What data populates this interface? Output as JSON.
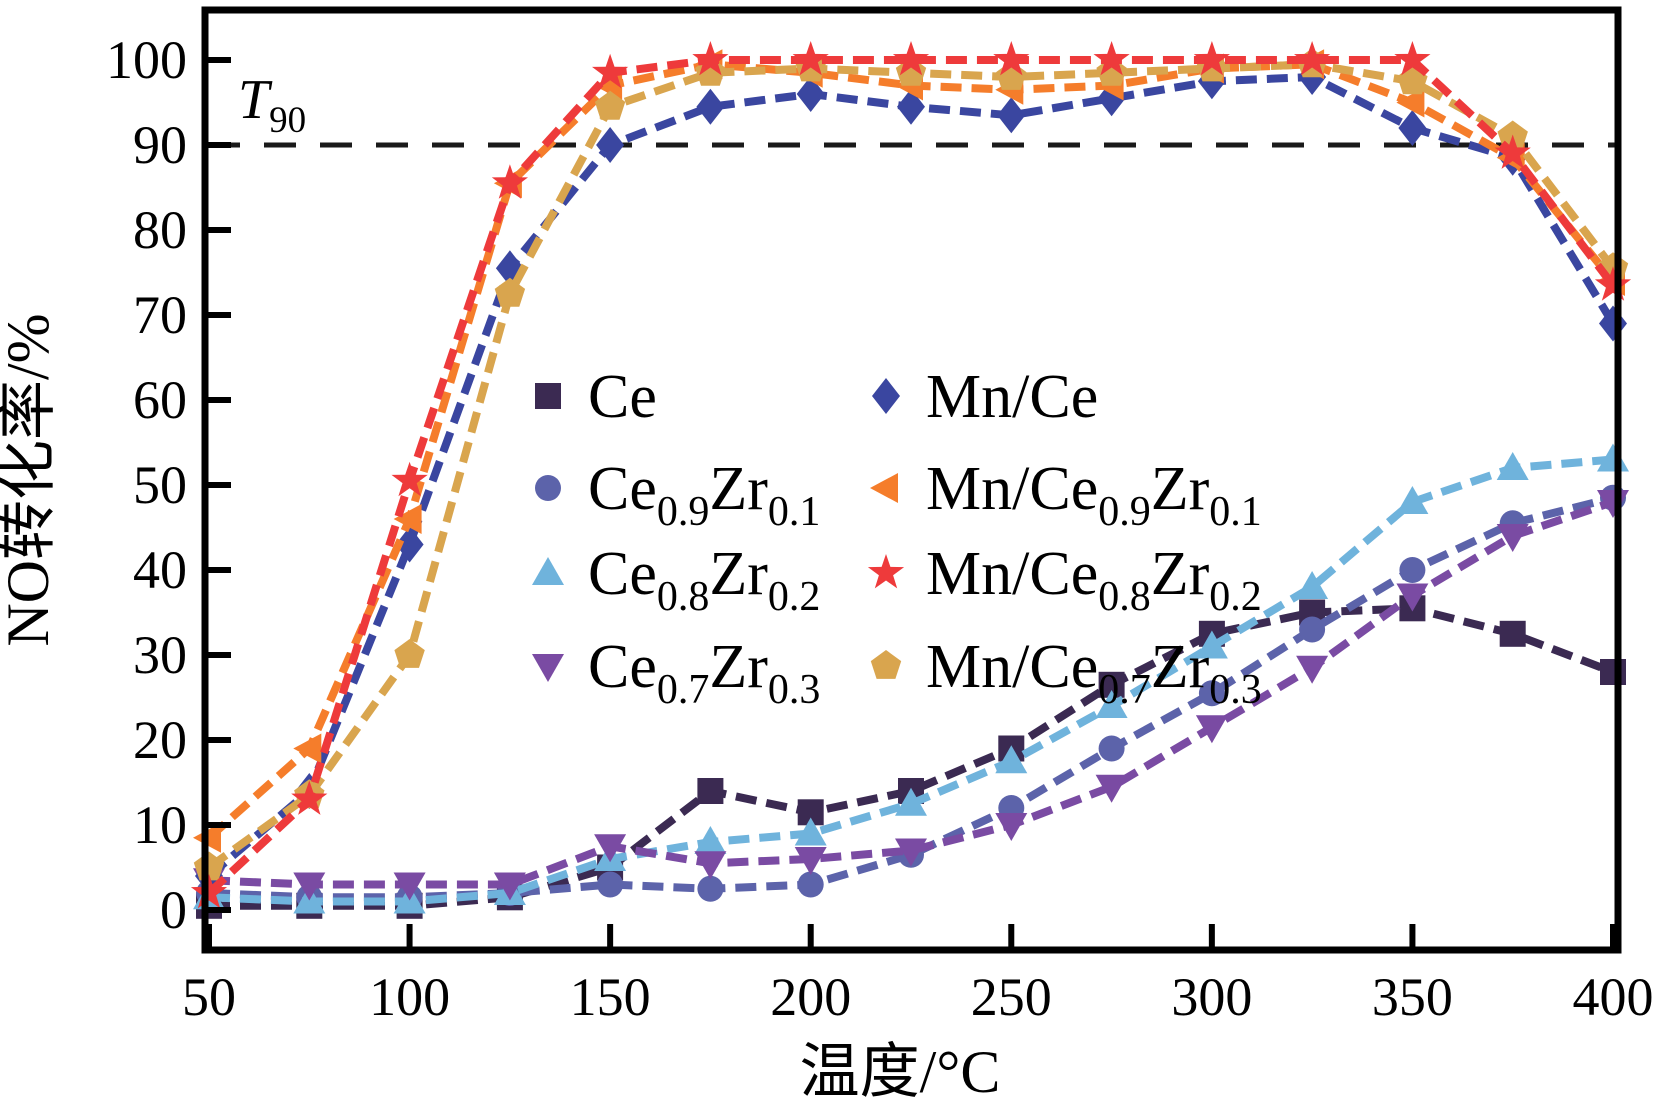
{
  "chart_data": {
    "type": "line",
    "title": "",
    "xlabel": "温度/°C",
    "ylabel": "NO转化率/%",
    "xlim": [
      50,
      400
    ],
    "ylim": [
      -5,
      105
    ],
    "x_ticks": [
      50,
      100,
      150,
      200,
      250,
      300,
      350,
      400
    ],
    "y_ticks": [
      0,
      10,
      20,
      30,
      40,
      50,
      60,
      70,
      80,
      90,
      100
    ],
    "grid": false,
    "legend_position": "center",
    "legend_columns": 2,
    "axis_color": "#000000",
    "background_color": "#ffffff",
    "reference_line": {
      "y": 90,
      "style": "dashed",
      "color": "#1a1a1a",
      "label_main": "T",
      "label_sub": "90"
    },
    "x": [
      50,
      75,
      100,
      125,
      150,
      175,
      200,
      225,
      250,
      275,
      300,
      325,
      350,
      375,
      400
    ],
    "series": [
      {
        "name": "Ce",
        "label_parts": [
          {
            "t": "Ce",
            "sub": false
          }
        ],
        "marker": "square",
        "color": "#3b2a52",
        "values": [
          0.5,
          0.5,
          0.5,
          1.5,
          5,
          14,
          11.5,
          14,
          19,
          26.5,
          32.5,
          35,
          35.5,
          32.5,
          28
        ]
      },
      {
        "name": "Ce0.9Zr0.1",
        "label_parts": [
          {
            "t": "Ce",
            "sub": false
          },
          {
            "t": "0.9",
            "sub": true
          },
          {
            "t": "Zr",
            "sub": false
          },
          {
            "t": "0.1",
            "sub": true
          }
        ],
        "marker": "circle",
        "color": "#5c63aa",
        "values": [
          2,
          1.5,
          1.5,
          2,
          3,
          2.5,
          3,
          6.5,
          12,
          19,
          25.5,
          33,
          40,
          45.5,
          48.5
        ]
      },
      {
        "name": "Ce0.8Zr0.2",
        "label_parts": [
          {
            "t": "Ce",
            "sub": false
          },
          {
            "t": "0.8",
            "sub": true
          },
          {
            "t": "Zr",
            "sub": false
          },
          {
            "t": "0.2",
            "sub": true
          }
        ],
        "marker": "triangle-up",
        "color": "#6fb3dc",
        "values": [
          1.5,
          1,
          1,
          2,
          6,
          8,
          9,
          12.5,
          17.5,
          24,
          31,
          38,
          48,
          52,
          53
        ]
      },
      {
        "name": "Ce0.7Zr0.3",
        "label_parts": [
          {
            "t": "Ce",
            "sub": false
          },
          {
            "t": "0.7",
            "sub": true
          },
          {
            "t": "Zr",
            "sub": false
          },
          {
            "t": "0.3",
            "sub": true
          }
        ],
        "marker": "triangle-down",
        "color": "#7a4ba3",
        "values": [
          3.5,
          3,
          3,
          3,
          7.5,
          5.5,
          6,
          7,
          10,
          14.5,
          21.5,
          28.5,
          37,
          44,
          48
        ]
      },
      {
        "name": "Mn/Ce",
        "label_parts": [
          {
            "t": "Mn/Ce",
            "sub": false
          }
        ],
        "marker": "diamond",
        "color": "#3a46a0",
        "values": [
          4,
          14,
          43,
          75.5,
          90,
          94.5,
          96,
          94.5,
          93.5,
          95.5,
          97.5,
          98,
          92,
          88.5,
          69
        ]
      },
      {
        "name": "Mn/Ce0.9Zr0.1",
        "label_parts": [
          {
            "t": "Mn/Ce",
            "sub": false
          },
          {
            "t": "0.9",
            "sub": true
          },
          {
            "t": "Zr",
            "sub": false
          },
          {
            "t": "0.1",
            "sub": true
          }
        ],
        "marker": "triangle-left",
        "color": "#f57d2b",
        "values": [
          8.5,
          19,
          46,
          85.5,
          97,
          99.5,
          98.5,
          97,
          96.5,
          97,
          99,
          99.5,
          95,
          88.5,
          74
        ]
      },
      {
        "name": "Mn/Ce0.8Zr0.2",
        "label_parts": [
          {
            "t": "Mn/Ce",
            "sub": false
          },
          {
            "t": "0.8",
            "sub": true
          },
          {
            "t": "Zr",
            "sub": false
          },
          {
            "t": "0.2",
            "sub": true
          }
        ],
        "marker": "star",
        "color": "#ee3a3b",
        "values": [
          2,
          13,
          50.5,
          85.5,
          98.5,
          100,
          100,
          100,
          100,
          100,
          100,
          100,
          100,
          89,
          73.5
        ]
      },
      {
        "name": "Mn/Ce0.7Zr0.3",
        "label_parts": [
          {
            "t": "Mn/Ce",
            "sub": false
          },
          {
            "t": "0.7",
            "sub": true
          },
          {
            "t": "Zr",
            "sub": false
          },
          {
            "t": "0.3",
            "sub": true
          }
        ],
        "marker": "pentagon",
        "color": "#d9a54e",
        "values": [
          5,
          13.5,
          30,
          72.5,
          94.5,
          98.5,
          99,
          98.5,
          98,
          98.5,
          99,
          99.5,
          97.5,
          91,
          75.5
        ]
      }
    ]
  }
}
